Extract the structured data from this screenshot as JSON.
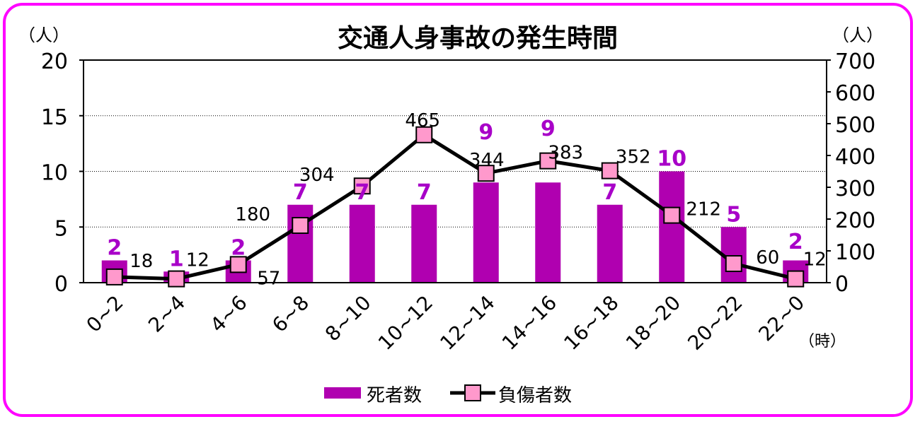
{
  "chart_data": {
    "type": "bar+line",
    "title": "交通人身事故の発生時間",
    "y_left_unit": "（人）",
    "y_right_unit": "（人）",
    "x_unit": "（時）",
    "categories": [
      "0~2",
      "2~4",
      "4~6",
      "6~8",
      "8~10",
      "10~12",
      "12~14",
      "14~16",
      "16~18",
      "18~20",
      "20~22",
      "22~0"
    ],
    "y_left_range": [
      0,
      20
    ],
    "y_left_ticks": [
      0,
      5,
      10,
      15,
      20
    ],
    "y_right_range": [
      0,
      700
    ],
    "y_right_ticks": [
      0,
      100,
      200,
      300,
      400,
      500,
      600,
      700
    ],
    "grid": "horizontal dotted",
    "legend_placement": "bottom",
    "series": [
      {
        "name": "死者数",
        "type": "bar",
        "axis": "left",
        "color": "#b000b0",
        "label_color": "#a800c8",
        "values": [
          2,
          1,
          2,
          7,
          7,
          7,
          9,
          9,
          7,
          10,
          5,
          2
        ]
      },
      {
        "name": "負傷者数",
        "type": "line",
        "axis": "right",
        "color": "#000000",
        "marker_color": "#ff99cc",
        "values": [
          18,
          12,
          57,
          180,
          304,
          465,
          344,
          383,
          352,
          212,
          60,
          12
        ]
      }
    ]
  },
  "frame_color": "#ff00ff"
}
